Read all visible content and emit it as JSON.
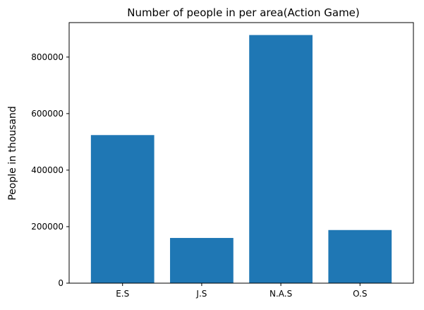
{
  "chart_data": {
    "type": "bar",
    "title": "Number of people in per area(Action Game)",
    "xlabel": "",
    "ylabel": "People in thousand",
    "categories": [
      "E.S",
      "J.S",
      "N.A.S",
      "O.S"
    ],
    "values": [
      524000,
      160000,
      878000,
      188000
    ],
    "ylim": [
      0,
      922000
    ],
    "yticks": [
      0,
      200000,
      400000,
      600000,
      800000
    ],
    "ytick_labels": [
      "0",
      "200000",
      "400000",
      "600000",
      "800000"
    ],
    "grid": false,
    "legend": "none",
    "colors": {
      "bar": "#1f77b4",
      "axis": "#000000",
      "background": "#ffffff"
    }
  }
}
